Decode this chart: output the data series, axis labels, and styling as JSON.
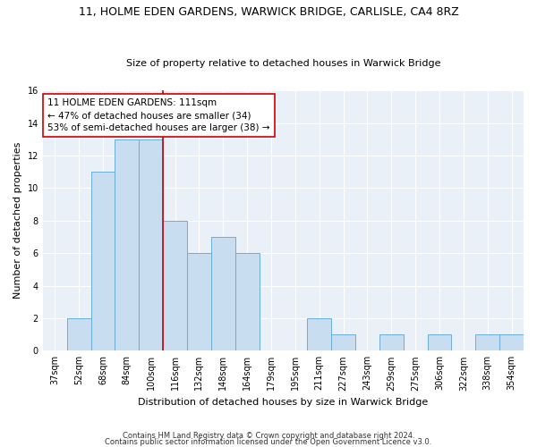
{
  "title1": "11, HOLME EDEN GARDENS, WARWICK BRIDGE, CARLISLE, CA4 8RZ",
  "title2": "Size of property relative to detached houses in Warwick Bridge",
  "xlabel": "Distribution of detached houses by size in Warwick Bridge",
  "ylabel": "Number of detached properties",
  "categories": [
    "37sqm",
    "52sqm",
    "68sqm",
    "84sqm",
    "100sqm",
    "116sqm",
    "132sqm",
    "148sqm",
    "164sqm",
    "179sqm",
    "195sqm",
    "211sqm",
    "227sqm",
    "243sqm",
    "259sqm",
    "275sqm",
    "306sqm",
    "322sqm",
    "338sqm",
    "354sqm"
  ],
  "values": [
    0,
    2,
    11,
    13,
    13,
    8,
    6,
    7,
    6,
    0,
    0,
    2,
    1,
    0,
    1,
    0,
    1,
    0,
    1,
    1
  ],
  "bar_color": "#c9ddf0",
  "bar_edge_color": "#6aaed6",
  "marker_index": 4,
  "marker_color": "#cc0000",
  "ylim": [
    0,
    16
  ],
  "yticks": [
    0,
    2,
    4,
    6,
    8,
    10,
    12,
    14,
    16
  ],
  "annotation_box_text": "11 HOLME EDEN GARDENS: 111sqm\n← 47% of detached houses are smaller (34)\n53% of semi-detached houses are larger (38) →",
  "annotation_box_color": "#ffffff",
  "annotation_box_edge_color": "#cc0000",
  "footer1": "Contains HM Land Registry data © Crown copyright and database right 2024.",
  "footer2": "Contains public sector information licensed under the Open Government Licence v3.0.",
  "bg_color": "#eaf0f8",
  "grid_color": "#ffffff",
  "title1_fontsize": 9,
  "title2_fontsize": 8,
  "ylabel_fontsize": 8,
  "xlabel_fontsize": 8,
  "tick_fontsize": 7,
  "annotation_fontsize": 7.5,
  "footer_fontsize": 6
}
